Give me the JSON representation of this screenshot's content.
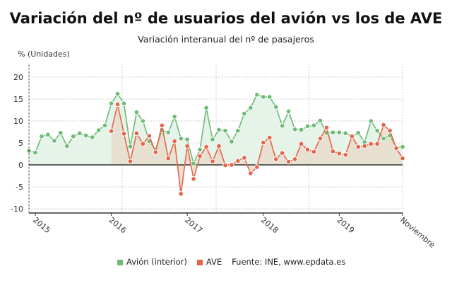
{
  "chart_data": {
    "type": "line",
    "title": "Variación del nº de usuarios del avión vs los de AVE",
    "subtitle": "Variación interanual del nº de pasajeros",
    "ylabel": "% (Unidades)",
    "xlabel": "",
    "ylim": [
      -10,
      20
    ],
    "yticks": [
      -10,
      -5,
      0,
      5,
      10,
      15,
      20
    ],
    "x_start": "2014-12",
    "x_end": "2019-11",
    "xtick_labels": [
      "2015",
      "2016",
      "2017",
      "2018",
      "2019",
      "Noviembre"
    ],
    "grid": true,
    "legend_position": "bottom",
    "source": "Fuente: INE, www.epdata.es",
    "series": [
      {
        "name": "Avión (interior)",
        "color": "#6dbb74",
        "start": "2014-12",
        "values": [
          3.2,
          2.8,
          6.5,
          6.9,
          5.5,
          7.3,
          4.3,
          6.5,
          7.2,
          6.7,
          6.3,
          7.9,
          9.0,
          14.0,
          16.2,
          14.0,
          4.2,
          12.0,
          10.0,
          5.4,
          3.5,
          7.9,
          7.4,
          11.0,
          6.0,
          5.8,
          0.3,
          3.5,
          13.0,
          5.8,
          8.0,
          7.8,
          5.3,
          7.8,
          11.7,
          13.0,
          16.0,
          15.5,
          15.5,
          13.2,
          8.9,
          12.2,
          8.1,
          8.0,
          8.8,
          9.0,
          10.1,
          7.3,
          7.4,
          7.4,
          7.2,
          6.5,
          7.3,
          5.2,
          10.0,
          7.8,
          6.0,
          6.7,
          4.0,
          4.1
        ]
      },
      {
        "name": "AVE",
        "color": "#e5654a",
        "start": "2016-01",
        "values": [
          7.7,
          13.8,
          7.1,
          0.8,
          7.2,
          4.8,
          6.6,
          2.9,
          9.0,
          1.5,
          5.4,
          -6.6,
          4.3,
          -3.2,
          2.0,
          4.1,
          0.8,
          4.3,
          -0.1,
          0.0,
          0.9,
          1.6,
          -1.9,
          -0.5,
          5.1,
          6.2,
          1.3,
          2.7,
          0.7,
          1.3,
          4.8,
          3.5,
          3.0,
          6.0,
          8.5,
          3.1,
          2.6,
          2.3,
          6.5,
          4.1,
          4.3,
          4.8,
          4.8,
          9.1,
          7.8,
          3.8,
          1.5
        ]
      }
    ]
  }
}
